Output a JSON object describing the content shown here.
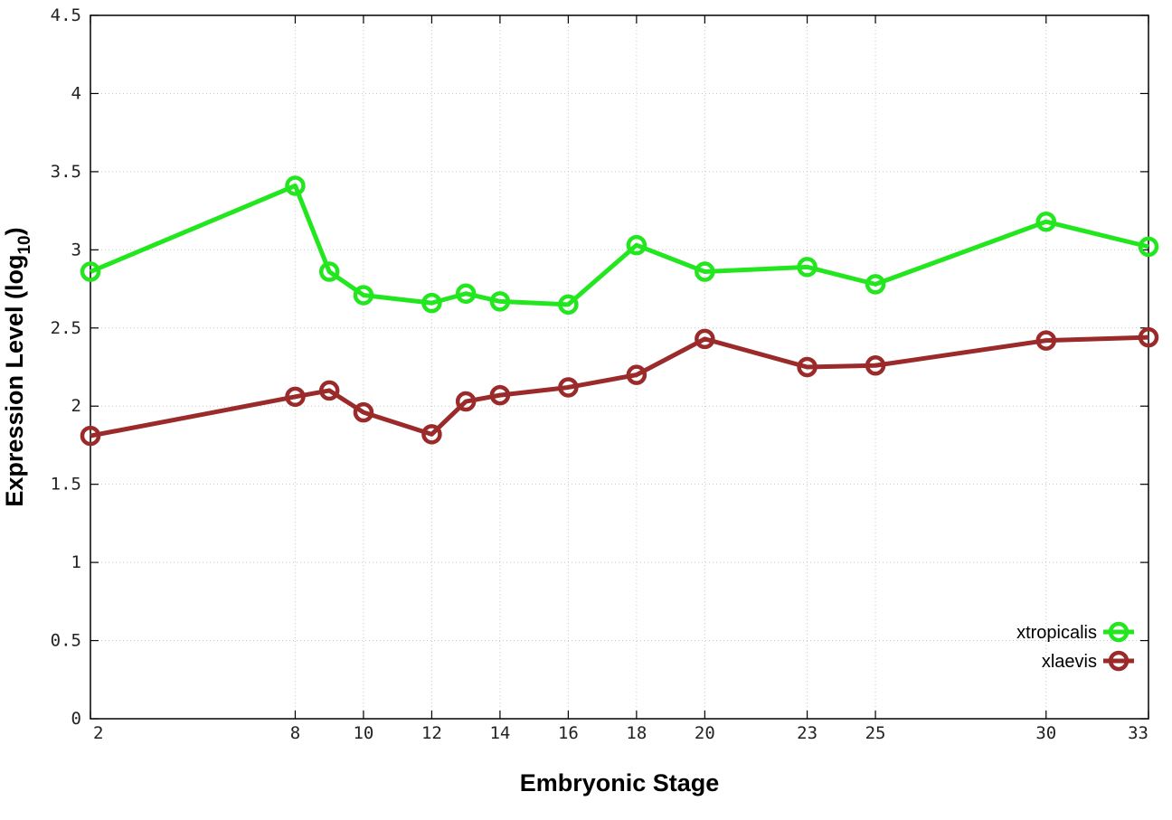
{
  "chart_data": {
    "type": "line",
    "x": [
      2,
      8,
      9,
      10,
      12,
      13,
      14,
      16,
      18,
      20,
      23,
      25,
      30,
      33
    ],
    "xticks": [
      "2",
      "8",
      "10",
      "12",
      "14",
      "16",
      "18",
      "20",
      "23",
      "25",
      "30",
      "33"
    ],
    "xtick_values": [
      2,
      8,
      10,
      12,
      14,
      16,
      18,
      20,
      23,
      25,
      30,
      33
    ],
    "yticks": [
      "0",
      "0.5",
      "1",
      "1.5",
      "2",
      "2.5",
      "3",
      "3.5",
      "4",
      "4.5"
    ],
    "xlim": [
      2,
      33
    ],
    "ylim": [
      0,
      4.5
    ],
    "xlabel": "Embryonic Stage",
    "ylabel": "Expression Level (log",
    "ylabel_sub": "10",
    "ylabel_close": ")",
    "grid": true,
    "legend_position": "bottom-right",
    "series": [
      {
        "name": "xtropicalis",
        "color": "#22e61e",
        "values": [
          2.86,
          3.41,
          2.86,
          2.71,
          2.66,
          2.72,
          2.67,
          2.65,
          3.03,
          2.86,
          2.89,
          2.78,
          3.18,
          3.02
        ]
      },
      {
        "name": "xlaevis",
        "color": "#9b2a2a",
        "values": [
          1.81,
          2.06,
          2.1,
          1.96,
          1.82,
          2.03,
          2.07,
          2.12,
          2.2,
          2.43,
          2.25,
          2.26,
          2.42,
          2.44
        ]
      }
    ]
  }
}
